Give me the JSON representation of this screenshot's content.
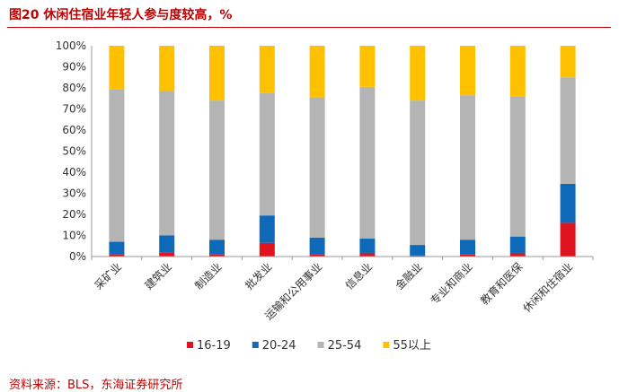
{
  "header": {
    "title": "图20  休闲住宿业年轻人参与度较高，%"
  },
  "footer": {
    "source": "资料来源：BLS，东海证券研究所"
  },
  "chart_data": {
    "type": "bar",
    "stacked": true,
    "categories": [
      "采矿业",
      "建筑业",
      "制造业",
      "批发业",
      "运输和公用事业",
      "信息业",
      "金融业",
      "专业和商业",
      "教育和医保",
      "休闲和住宿业"
    ],
    "series": [
      {
        "name": "16-19",
        "color": "#e0141e",
        "values": [
          1,
          2,
          1,
          6.5,
          1,
          1.5,
          0.5,
          1,
          1.5,
          16
        ]
      },
      {
        "name": "20-24",
        "color": "#0e6ab8",
        "values": [
          6,
          8,
          7,
          13,
          8,
          7,
          5,
          7,
          8,
          18.5
        ]
      },
      {
        "name": "25-54",
        "color": "#b4b4b4",
        "values": [
          72.5,
          68.5,
          66,
          58,
          66.5,
          72,
          68.5,
          68.5,
          66.5,
          50.5
        ]
      },
      {
        "name": "55以上",
        "color": "#ffc000",
        "values": [
          20.5,
          21.5,
          26,
          22.5,
          24.5,
          19.5,
          26,
          23.5,
          24,
          15
        ]
      }
    ],
    "ylim": [
      0,
      100
    ],
    "yticks": [
      "0%",
      "10%",
      "20%",
      "30%",
      "40%",
      "50%",
      "60%",
      "70%",
      "80%",
      "90%",
      "100%"
    ],
    "legend_position": "bottom"
  }
}
